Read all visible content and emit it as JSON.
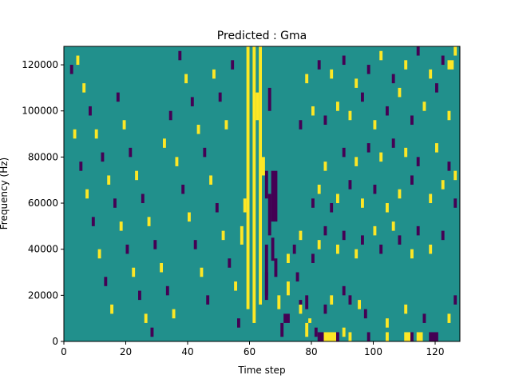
{
  "chart_data": {
    "type": "heatmap",
    "title": "Predicted : Gma",
    "xlabel": "Time step",
    "ylabel": "Frequency (Hz)",
    "xlim": [
      0,
      128
    ],
    "ylim": [
      0,
      128000
    ],
    "x_ticks": [
      0,
      20,
      40,
      60,
      80,
      100,
      120
    ],
    "y_ticks": [
      0,
      20000,
      40000,
      60000,
      80000,
      100000,
      120000
    ],
    "x_tick_labels": [
      "0",
      "20",
      "40",
      "60",
      "80",
      "100",
      "120"
    ],
    "y_tick_labels": [
      "0",
      "20000",
      "40000",
      "60000",
      "80000",
      "100000",
      "120000"
    ],
    "colormap": "viridis",
    "value_levels": [
      -1,
      0,
      1
    ],
    "level_colors": {
      "-1": "#440154",
      "0": "#21908c",
      "1": "#fde725"
    },
    "grid": false,
    "grid_shape": {
      "time_steps": 128,
      "freq_bins": 128
    },
    "cells": [
      [
        59,
        60,
        14,
        128,
        1
      ],
      [
        61,
        62,
        8,
        128,
        1
      ],
      [
        63,
        64,
        16,
        128,
        1
      ],
      [
        65,
        66,
        18,
        42,
        -1
      ],
      [
        67,
        68,
        35,
        45,
        -1
      ],
      [
        66,
        67,
        46,
        64,
        -1
      ],
      [
        67,
        69,
        52,
        74,
        -1
      ],
      [
        65,
        66,
        62,
        74,
        -1
      ],
      [
        68,
        69,
        28,
        36,
        -1
      ],
      [
        65,
        66,
        20,
        30,
        -1
      ],
      [
        57,
        58,
        42,
        50,
        1
      ],
      [
        58,
        59,
        56,
        62,
        1
      ],
      [
        64,
        65,
        72,
        80,
        1
      ],
      [
        62,
        63,
        96,
        108,
        1
      ],
      [
        66,
        67,
        100,
        110,
        -1
      ],
      [
        70,
        71,
        2,
        8,
        -1
      ],
      [
        71,
        73,
        8,
        12,
        -1
      ],
      [
        69,
        70,
        14,
        20,
        1
      ],
      [
        72,
        73,
        20,
        26,
        1
      ],
      [
        75,
        76,
        26,
        30,
        -1
      ],
      [
        78,
        79,
        2,
        8,
        1
      ],
      [
        81,
        82,
        2,
        6,
        -1
      ],
      [
        82,
        85,
        0,
        4,
        -1
      ],
      [
        84,
        88,
        0,
        4,
        1
      ],
      [
        88,
        89,
        0,
        4,
        -1
      ],
      [
        90,
        91,
        2,
        6,
        1
      ],
      [
        92,
        93,
        0,
        4,
        1
      ],
      [
        98,
        99,
        0,
        4,
        -1
      ],
      [
        104,
        105,
        0,
        4,
        1
      ],
      [
        110,
        112,
        0,
        4,
        1
      ],
      [
        112,
        113,
        0,
        4,
        -1
      ],
      [
        114,
        116,
        0,
        4,
        1
      ],
      [
        118,
        121,
        0,
        4,
        -1
      ],
      [
        76,
        77,
        12,
        16,
        1
      ],
      [
        76,
        77,
        16,
        18,
        -1
      ],
      [
        78,
        79,
        14,
        20,
        -1
      ],
      [
        79,
        80,
        8,
        10,
        1
      ],
      [
        84,
        85,
        12,
        16,
        -1
      ],
      [
        86,
        87,
        16,
        20,
        1
      ],
      [
        90,
        91,
        20,
        24,
        -1
      ],
      [
        92,
        93,
        16,
        20,
        -1
      ],
      [
        95,
        96,
        14,
        18,
        1
      ],
      [
        97,
        98,
        10,
        14,
        -1
      ],
      [
        104,
        105,
        6,
        10,
        1
      ],
      [
        110,
        111,
        12,
        16,
        1
      ],
      [
        116,
        117,
        8,
        12,
        -1
      ],
      [
        124,
        125,
        8,
        12,
        1
      ],
      [
        126,
        127,
        16,
        20,
        -1
      ],
      [
        72,
        73,
        34,
        38,
        1
      ],
      [
        74,
        75,
        38,
        42,
        -1
      ],
      [
        76,
        77,
        44,
        48,
        1
      ],
      [
        80,
        81,
        34,
        38,
        -1
      ],
      [
        82,
        83,
        40,
        44,
        1
      ],
      [
        84,
        85,
        46,
        50,
        -1
      ],
      [
        88,
        89,
        38,
        42,
        1
      ],
      [
        90,
        91,
        44,
        48,
        -1
      ],
      [
        94,
        95,
        36,
        40,
        1
      ],
      [
        96,
        97,
        42,
        46,
        -1
      ],
      [
        100,
        101,
        46,
        50,
        1
      ],
      [
        102,
        103,
        38,
        42,
        -1
      ],
      [
        106,
        107,
        48,
        52,
        1
      ],
      [
        108,
        109,
        42,
        46,
        -1
      ],
      [
        112,
        113,
        36,
        40,
        1
      ],
      [
        114,
        115,
        46,
        50,
        -1
      ],
      [
        118,
        119,
        38,
        42,
        1
      ],
      [
        122,
        123,
        44,
        48,
        -1
      ],
      [
        80,
        81,
        58,
        62,
        -1
      ],
      [
        82,
        83,
        64,
        68,
        1
      ],
      [
        86,
        87,
        56,
        60,
        -1
      ],
      [
        88,
        89,
        60,
        64,
        1
      ],
      [
        92,
        93,
        66,
        70,
        -1
      ],
      [
        96,
        97,
        58,
        62,
        1
      ],
      [
        100,
        101,
        64,
        68,
        -1
      ],
      [
        104,
        105,
        56,
        60,
        1
      ],
      [
        108,
        109,
        62,
        66,
        1
      ],
      [
        112,
        113,
        68,
        72,
        -1
      ],
      [
        118,
        119,
        60,
        64,
        1
      ],
      [
        122,
        123,
        66,
        70,
        1
      ],
      [
        126,
        127,
        58,
        62,
        -1
      ],
      [
        84,
        85,
        74,
        78,
        1
      ],
      [
        90,
        91,
        80,
        84,
        -1
      ],
      [
        94,
        95,
        76,
        80,
        1
      ],
      [
        98,
        99,
        82,
        86,
        -1
      ],
      [
        102,
        103,
        78,
        82,
        1
      ],
      [
        106,
        107,
        84,
        88,
        -1
      ],
      [
        110,
        111,
        80,
        84,
        1
      ],
      [
        114,
        115,
        76,
        80,
        -1
      ],
      [
        120,
        121,
        82,
        86,
        1
      ],
      [
        124,
        125,
        74,
        78,
        -1
      ],
      [
        126,
        127,
        70,
        74,
        1
      ],
      [
        76,
        77,
        92,
        96,
        -1
      ],
      [
        80,
        81,
        98,
        102,
        1
      ],
      [
        84,
        85,
        94,
        98,
        -1
      ],
      [
        88,
        89,
        100,
        104,
        1
      ],
      [
        92,
        93,
        96,
        100,
        1
      ],
      [
        96,
        97,
        104,
        108,
        -1
      ],
      [
        100,
        101,
        92,
        96,
        1
      ],
      [
        104,
        105,
        98,
        102,
        -1
      ],
      [
        108,
        109,
        106,
        110,
        1
      ],
      [
        112,
        113,
        94,
        98,
        -1
      ],
      [
        116,
        117,
        100,
        104,
        1
      ],
      [
        120,
        121,
        108,
        112,
        -1
      ],
      [
        124,
        125,
        96,
        100,
        1
      ],
      [
        78,
        79,
        112,
        116,
        1
      ],
      [
        82,
        83,
        118,
        122,
        -1
      ],
      [
        86,
        87,
        114,
        118,
        1
      ],
      [
        90,
        91,
        120,
        124,
        -1
      ],
      [
        94,
        95,
        110,
        114,
        1
      ],
      [
        98,
        99,
        116,
        120,
        -1
      ],
      [
        102,
        103,
        122,
        126,
        1
      ],
      [
        106,
        107,
        112,
        116,
        -1
      ],
      [
        110,
        111,
        118,
        122,
        1
      ],
      [
        114,
        115,
        124,
        128,
        -1
      ],
      [
        118,
        119,
        114,
        118,
        1
      ],
      [
        122,
        123,
        120,
        124,
        -1
      ],
      [
        124,
        126,
        118,
        122,
        1
      ],
      [
        126,
        127,
        124,
        128,
        1
      ],
      [
        2,
        3,
        116,
        120,
        -1
      ],
      [
        4,
        5,
        120,
        124,
        1
      ],
      [
        6,
        7,
        108,
        112,
        1
      ],
      [
        8,
        9,
        98,
        102,
        -1
      ],
      [
        10,
        11,
        88,
        92,
        1
      ],
      [
        12,
        13,
        78,
        82,
        -1
      ],
      [
        14,
        15,
        68,
        72,
        1
      ],
      [
        16,
        17,
        58,
        62,
        -1
      ],
      [
        18,
        19,
        48,
        52,
        1
      ],
      [
        20,
        21,
        38,
        42,
        -1
      ],
      [
        22,
        23,
        28,
        32,
        1
      ],
      [
        24,
        25,
        18,
        22,
        -1
      ],
      [
        26,
        27,
        8,
        12,
        1
      ],
      [
        28,
        29,
        2,
        6,
        -1
      ],
      [
        3,
        4,
        88,
        92,
        1
      ],
      [
        5,
        6,
        74,
        78,
        -1
      ],
      [
        7,
        8,
        62,
        66,
        1
      ],
      [
        9,
        10,
        50,
        54,
        -1
      ],
      [
        11,
        12,
        36,
        40,
        1
      ],
      [
        13,
        14,
        24,
        28,
        -1
      ],
      [
        15,
        16,
        12,
        16,
        1
      ],
      [
        17,
        18,
        104,
        108,
        -1
      ],
      [
        19,
        20,
        92,
        96,
        1
      ],
      [
        21,
        22,
        80,
        84,
        -1
      ],
      [
        23,
        24,
        70,
        74,
        1
      ],
      [
        25,
        26,
        60,
        64,
        -1
      ],
      [
        27,
        28,
        50,
        54,
        1
      ],
      [
        29,
        30,
        40,
        44,
        -1
      ],
      [
        31,
        32,
        30,
        34,
        1
      ],
      [
        33,
        34,
        20,
        24,
        -1
      ],
      [
        35,
        36,
        10,
        14,
        1
      ],
      [
        37,
        38,
        122,
        126,
        -1
      ],
      [
        39,
        40,
        112,
        116,
        1
      ],
      [
        41,
        42,
        102,
        106,
        -1
      ],
      [
        43,
        44,
        90,
        94,
        1
      ],
      [
        45,
        46,
        80,
        84,
        -1
      ],
      [
        47,
        48,
        68,
        72,
        1
      ],
      [
        49,
        50,
        56,
        60,
        -1
      ],
      [
        51,
        52,
        44,
        48,
        1
      ],
      [
        53,
        54,
        32,
        36,
        -1
      ],
      [
        55,
        56,
        22,
        26,
        1
      ],
      [
        56,
        57,
        6,
        10,
        -1
      ],
      [
        32,
        33,
        84,
        88,
        1
      ],
      [
        34,
        35,
        96,
        100,
        -1
      ],
      [
        36,
        37,
        76,
        80,
        1
      ],
      [
        38,
        39,
        64,
        68,
        -1
      ],
      [
        40,
        41,
        52,
        56,
        1
      ],
      [
        42,
        43,
        40,
        44,
        -1
      ],
      [
        44,
        45,
        28,
        32,
        1
      ],
      [
        46,
        47,
        16,
        20,
        -1
      ],
      [
        48,
        49,
        114,
        118,
        1
      ],
      [
        50,
        51,
        104,
        108,
        -1
      ],
      [
        52,
        53,
        92,
        96,
        1
      ],
      [
        54,
        55,
        118,
        122,
        -1
      ]
    ]
  }
}
